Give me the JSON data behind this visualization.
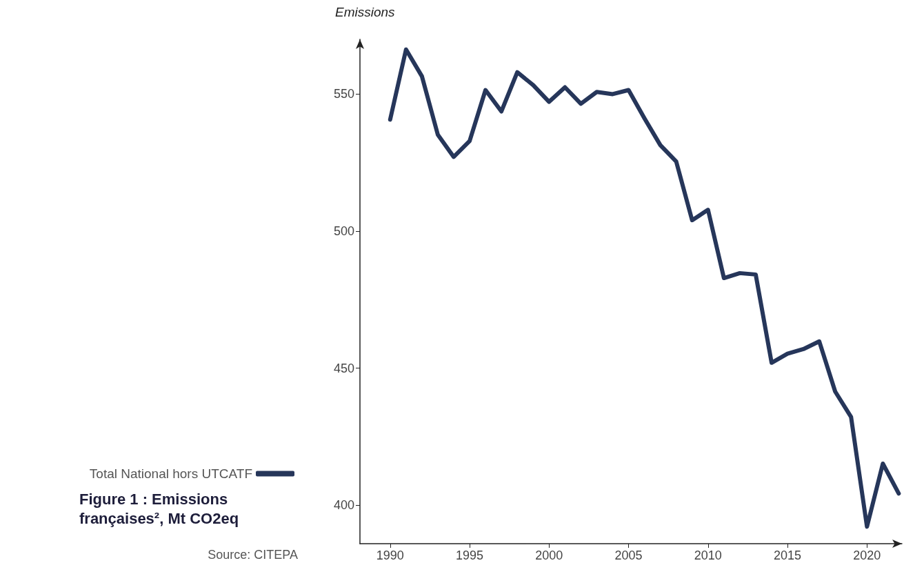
{
  "chart_data": {
    "type": "line",
    "title": "Figure 1 : Emissions françaises², Mt CO2eq",
    "ylabel": "Emissions",
    "annotations": [
      "Source: CITEPA"
    ],
    "x": [
      1990,
      1991,
      1992,
      1993,
      1994,
      1995,
      1996,
      1997,
      1998,
      1999,
      2000,
      2001,
      2002,
      2003,
      2004,
      2005,
      2006,
      2007,
      2008,
      2009,
      2010,
      2011,
      2012,
      2013,
      2014,
      2015,
      2016,
      2017,
      2018,
      2019,
      2020,
      2021,
      2022
    ],
    "series": [
      {
        "name": "Total National hors UTCATF",
        "color": "#26365a",
        "values": [
          540.7,
          566.3,
          556.5,
          535.2,
          527.1,
          532.9,
          551.5,
          543.7,
          558,
          553.3,
          547.2,
          552.5,
          546.5,
          550.8,
          550,
          551.5,
          541.2,
          531.4,
          525.4,
          504,
          507.8,
          482.9,
          484.7,
          484.2,
          452,
          455.3,
          457,
          459.8,
          441.5,
          432.2,
          392.2,
          415.2,
          404.3
        ]
      }
    ],
    "xlim": [
      1988.1,
      2022.2
    ],
    "xticks": [
      1990,
      1995,
      2000,
      2005,
      2010,
      2015,
      2020
    ],
    "ylim": [
      386,
      570
    ],
    "yticks": [
      400,
      450,
      500,
      550
    ],
    "grid": false,
    "legend": "left",
    "marker": "none",
    "line_style": "solid"
  }
}
